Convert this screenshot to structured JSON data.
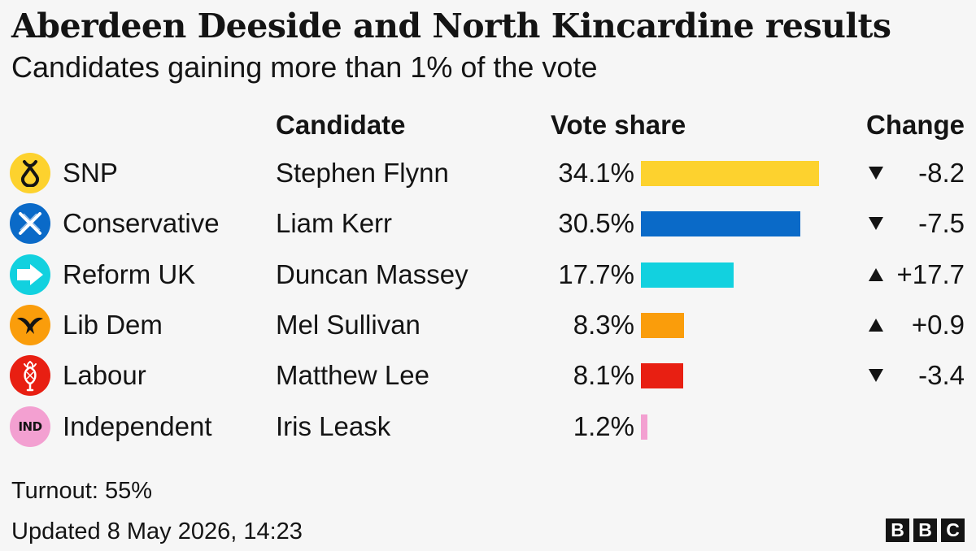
{
  "chart_data": {
    "type": "bar",
    "title": "Aberdeen Deeside and North Kincardine results",
    "subtitle": "Candidates gaining more than 1% of the vote",
    "headers": {
      "candidate": "Candidate",
      "vote_share": "Vote share",
      "change": "Change"
    },
    "unit": "%",
    "xlim": [
      0,
      50
    ],
    "rows": [
      {
        "party": "SNP",
        "candidate": "Stephen Flynn",
        "share": 34.1,
        "share_label": "34.1%",
        "change": -8.2,
        "change_label": "-8.2",
        "direction": "down",
        "color": "#fdd22e",
        "icon": "snp-icon"
      },
      {
        "party": "Conservative",
        "candidate": "Liam Kerr",
        "share": 30.5,
        "share_label": "30.5%",
        "change": -7.5,
        "change_label": "-7.5",
        "direction": "down",
        "color": "#0a6ac8",
        "icon": "conservative-icon"
      },
      {
        "party": "Reform UK",
        "candidate": "Duncan Massey",
        "share": 17.7,
        "share_label": "17.7%",
        "change": 17.7,
        "change_label": "+17.7",
        "direction": "up",
        "color": "#12d1df",
        "icon": "reform-uk-icon"
      },
      {
        "party": "Lib Dem",
        "candidate": "Mel Sullivan",
        "share": 8.3,
        "share_label": "8.3%",
        "change": 0.9,
        "change_label": "+0.9",
        "direction": "up",
        "color": "#fa9d0b",
        "icon": "lib-dem-icon"
      },
      {
        "party": "Labour",
        "candidate": "Matthew Lee",
        "share": 8.1,
        "share_label": "8.1%",
        "change": -3.4,
        "change_label": "-3.4",
        "direction": "down",
        "color": "#e81f12",
        "icon": "labour-icon"
      },
      {
        "party": "Independent",
        "candidate": "Iris Leask",
        "share": 1.2,
        "share_label": "1.2%",
        "change": null,
        "change_label": "",
        "direction": "none",
        "color": "#f3a0d1",
        "icon": "independent-icon",
        "icon_text": "IND"
      }
    ]
  },
  "footer": {
    "turnout": "Turnout: 55%",
    "updated": "Updated 8 May 2026, 14:23"
  },
  "branding": {
    "letters": [
      "B",
      "B",
      "C"
    ]
  }
}
